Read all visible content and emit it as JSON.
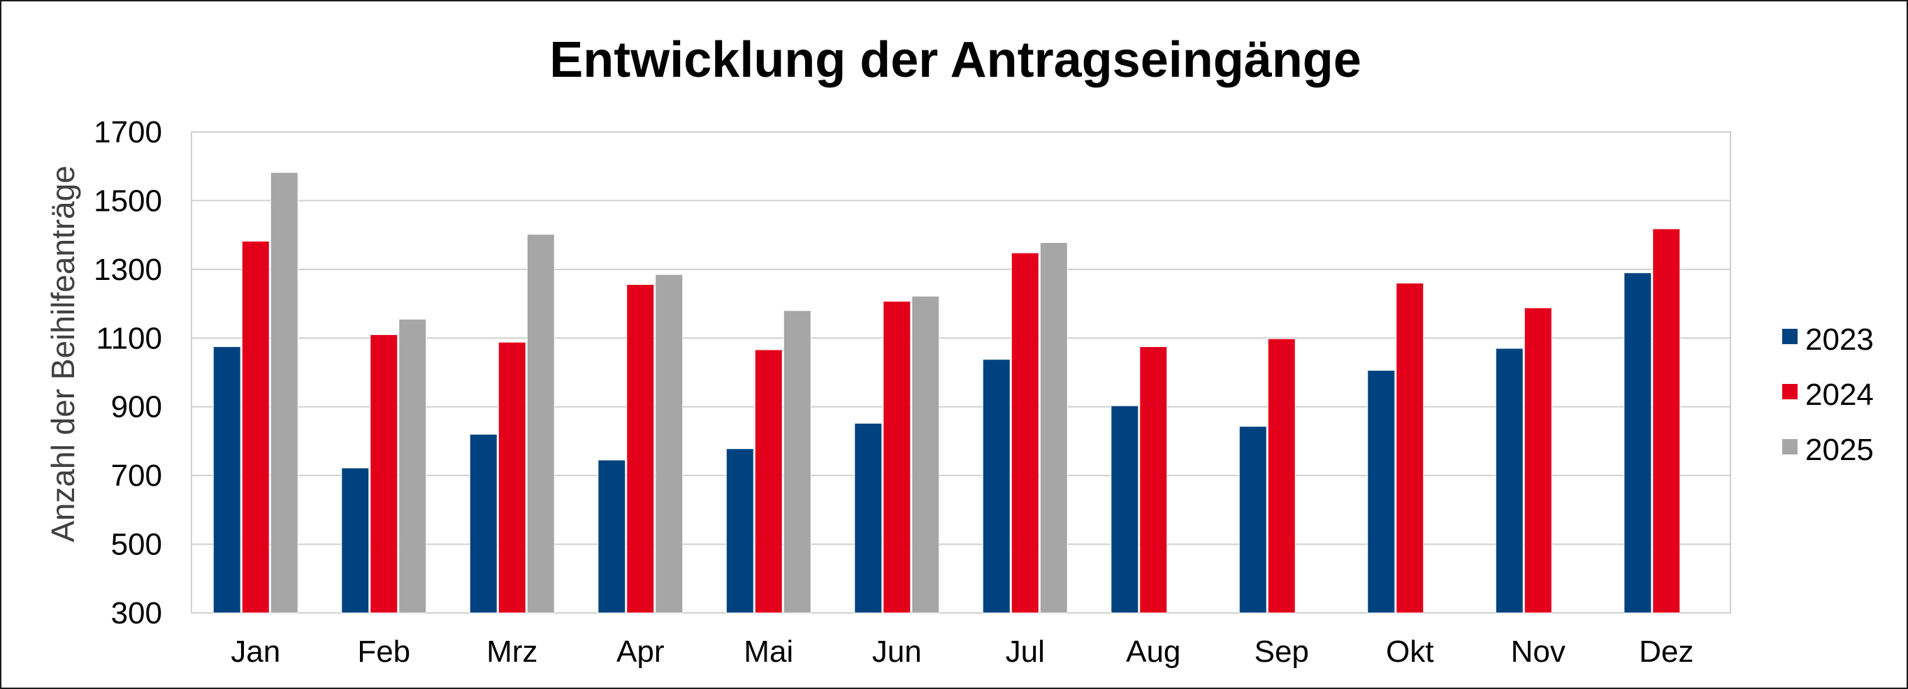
{
  "chart_data": {
    "type": "bar",
    "title": "Entwicklung der Antragseingänge",
    "xlabel": "",
    "ylabel": "Anzahl der Beihilfeanträge",
    "ylim": [
      300,
      1700
    ],
    "yticks": [
      300,
      500,
      700,
      900,
      1100,
      1300,
      1500,
      1700
    ],
    "grid": true,
    "legend_position": "right",
    "categories": [
      "Jan",
      "Feb",
      "Mrz",
      "Apr",
      "Mai",
      "Jun",
      "Jul",
      "Aug",
      "Sep",
      "Okt",
      "Nov",
      "Dez"
    ],
    "series": [
      {
        "name": "2023",
        "color": "#004280",
        "values": [
          1075,
          722,
          820,
          745,
          778,
          852,
          1038,
          903,
          843,
          1006,
          1070,
          1290
        ]
      },
      {
        "name": "2024",
        "color": "#E2001A",
        "values": [
          1382,
          1110,
          1088,
          1256,
          1066,
          1207,
          1348,
          1075,
          1098,
          1260,
          1188,
          1418
        ]
      },
      {
        "name": "2025",
        "color": "#A6A6A6",
        "values": [
          1582,
          1155,
          1402,
          1285,
          1180,
          1222,
          1378,
          null,
          null,
          null,
          null,
          null
        ]
      }
    ]
  }
}
